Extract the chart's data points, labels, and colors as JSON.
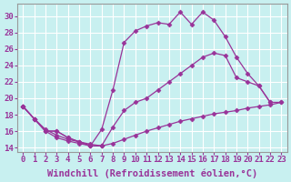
{
  "xlabel": "Windchill (Refroidissement éolien,°C)",
  "xlim": [
    -0.5,
    23.5
  ],
  "ylim": [
    13.5,
    31.5
  ],
  "xticks": [
    0,
    1,
    2,
    3,
    4,
    5,
    6,
    7,
    8,
    9,
    10,
    11,
    12,
    13,
    14,
    15,
    16,
    17,
    18,
    19,
    20,
    21,
    22,
    23
  ],
  "yticks": [
    14,
    16,
    18,
    20,
    22,
    24,
    26,
    28,
    30
  ],
  "bg_color": "#c8f0f0",
  "grid_color": "#ffffff",
  "line_color": "#993399",
  "line1_x": [
    0,
    1,
    2,
    3,
    4,
    5,
    6,
    7,
    8,
    9,
    10,
    11,
    12,
    13,
    14,
    15,
    16,
    17,
    18,
    19,
    20,
    21,
    22
  ],
  "line1_y": [
    19.0,
    17.5,
    16.0,
    16.0,
    15.2,
    14.7,
    14.2,
    16.2,
    21.0,
    26.8,
    28.2,
    28.8,
    29.2,
    29.0,
    30.5,
    29.0,
    30.5,
    29.5,
    27.5,
    25.0,
    23.0,
    21.5,
    19.5
  ],
  "line2_x": [
    0,
    1,
    2,
    3,
    4,
    5,
    6,
    7,
    8,
    9,
    10,
    11,
    12,
    13,
    14,
    15,
    16,
    17,
    18,
    19,
    20,
    21,
    22,
    23
  ],
  "line2_y": [
    19.0,
    17.5,
    16.0,
    16.0,
    15.2,
    14.7,
    14.2,
    14.2,
    16.5,
    18.5,
    19.5,
    20.0,
    21.0,
    22.0,
    23.0,
    24.0,
    25.0,
    25.5,
    25.2,
    22.5,
    22.0,
    21.5,
    19.5,
    19.5
  ],
  "line3_x": [
    0,
    1,
    2,
    3,
    4,
    5,
    6,
    7,
    8,
    9,
    10,
    11,
    12,
    13,
    14,
    15,
    16,
    17,
    18,
    19,
    20,
    21,
    22,
    23
  ],
  "line3_y": [
    19.0,
    17.5,
    16.2,
    15.5,
    15.0,
    14.7,
    14.4,
    14.2,
    14.5,
    15.0,
    15.5,
    16.0,
    16.4,
    16.8,
    17.2,
    17.5,
    17.8,
    18.1,
    18.3,
    18.5,
    18.8,
    19.0,
    19.2,
    19.5
  ],
  "line4_x": [
    0,
    1,
    2,
    3,
    4,
    5,
    6,
    7
  ],
  "line4_y": [
    19.0,
    17.5,
    16.0,
    15.2,
    14.8,
    14.5,
    14.2,
    14.2
  ],
  "xlabel_fontsize": 7.5,
  "tick_fontsize": 6.5
}
